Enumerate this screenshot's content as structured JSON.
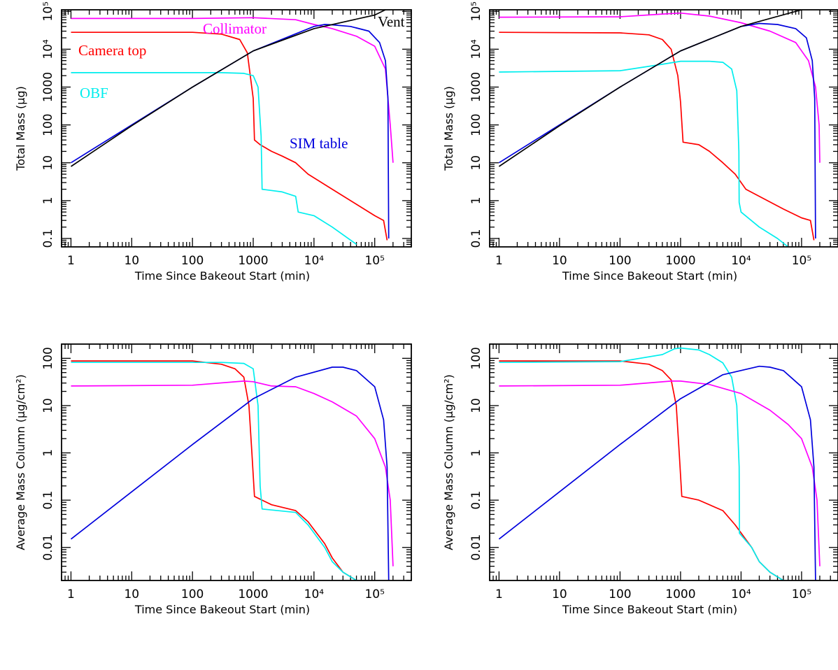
{
  "figure": {
    "colors": {
      "camera_top": "#ff0000",
      "collimator": "#ff00ff",
      "obf": "#00eeee",
      "sim_table": "#0000dd",
      "vent": "#000000"
    }
  },
  "chart_data": [
    {
      "type": "line",
      "xlabel": "Time Since Bakeout Start (min)",
      "ylabel": "Total Mass (μg)",
      "xscale": "log",
      "yscale": "log",
      "xlim": [
        0.7,
        400000
      ],
      "ylim": [
        0.06,
        110000
      ],
      "xtick_labels": [
        "1",
        "10",
        "100",
        "1000",
        "10⁴",
        "10⁵"
      ],
      "ytick_labels": [
        "0.1",
        "1",
        "10",
        "100",
        "1000",
        "10⁴",
        "10⁵"
      ],
      "annotations": [
        {
          "text": "Collimator",
          "series": "collimator"
        },
        {
          "text": "Vent",
          "series": "vent"
        },
        {
          "text": "Camera top",
          "series": "camera_top"
        },
        {
          "text": "OBF",
          "series": "obf"
        },
        {
          "text": "SIM table",
          "series": "sim_table"
        }
      ],
      "series": [
        {
          "key": "camera_top",
          "x": [
            1,
            100,
            300,
            600,
            800,
            1000,
            1050,
            1300,
            2000,
            3000,
            5000,
            8000,
            20000,
            50000,
            100000,
            140000,
            160000
          ],
          "y": [
            28000,
            28000,
            25000,
            18000,
            8000,
            500,
            40,
            30,
            20,
            15,
            10,
            5,
            2,
            0.8,
            0.4,
            0.3,
            0.09
          ]
        },
        {
          "key": "obf",
          "x": [
            1,
            300,
            700,
            1000,
            1200,
            1350,
            1400,
            3000,
            5000,
            5500,
            10000,
            20000,
            50000
          ],
          "y": [
            2400,
            2400,
            2300,
            2000,
            1000,
            50,
            2,
            1.7,
            1.3,
            0.5,
            0.4,
            0.2,
            0.07
          ]
        },
        {
          "key": "collimator",
          "x": [
            1,
            100,
            1000,
            5000,
            10000,
            20000,
            50000,
            100000,
            150000,
            180000,
            200000
          ],
          "y": [
            65000,
            65000,
            68000,
            60000,
            45000,
            35000,
            22000,
            12000,
            3000,
            100,
            10
          ]
        },
        {
          "key": "sim_table",
          "x": [
            1,
            10,
            100,
            1000,
            10000,
            15000,
            20000,
            40000,
            80000,
            120000,
            150000,
            165000,
            170000
          ],
          "y": [
            10,
            100,
            1000,
            9000,
            40000,
            45000,
            44000,
            40000,
            30000,
            15000,
            5000,
            500,
            0.1
          ]
        },
        {
          "key": "vent",
          "x": [
            1,
            10,
            100,
            1000,
            10000,
            100000,
            150000
          ],
          "y": [
            8,
            95,
            1000,
            9000,
            35000,
            80000,
            110000
          ]
        }
      ]
    },
    {
      "type": "line",
      "xlabel": "Time Since Bakeout Start (min)",
      "ylabel": "Total Mass (μg)",
      "xscale": "log",
      "yscale": "log",
      "xlim": [
        0.7,
        400000
      ],
      "ylim": [
        0.06,
        110000
      ],
      "xtick_labels": [
        "1",
        "10",
        "100",
        "1000",
        "10⁴",
        "10⁵"
      ],
      "ytick_labels": [
        "0.1",
        "1",
        "10",
        "100",
        "1000",
        "10⁴",
        "10⁵"
      ],
      "series": [
        {
          "key": "camera_top",
          "x": [
            1,
            100,
            300,
            500,
            700,
            900,
            1000,
            1100,
            2000,
            3000,
            5000,
            8000,
            12000,
            20000,
            50000,
            100000,
            140000,
            160000
          ],
          "y": [
            28000,
            27000,
            24000,
            18000,
            10000,
            2000,
            400,
            35,
            30,
            20,
            10,
            5,
            2,
            1.3,
            0.6,
            0.35,
            0.3,
            0.09
          ]
        },
        {
          "key": "obf",
          "x": [
            1,
            100,
            500,
            1000,
            3000,
            5000,
            7000,
            8500,
            9200,
            9300,
            10000,
            20000,
            40000,
            60000
          ],
          "y": [
            2500,
            2700,
            4000,
            4800,
            4800,
            4500,
            3000,
            800,
            20,
            0.9,
            0.5,
            0.2,
            0.1,
            0.06
          ]
        },
        {
          "key": "collimator",
          "x": [
            1,
            100,
            500,
            1000,
            3000,
            10000,
            30000,
            80000,
            130000,
            170000,
            195000,
            200000
          ],
          "y": [
            70000,
            72000,
            85000,
            90000,
            75000,
            50000,
            30000,
            15000,
            5000,
            1000,
            100,
            10
          ]
        },
        {
          "key": "sim_table",
          "x": [
            1,
            10,
            100,
            1000,
            10000,
            20000,
            40000,
            80000,
            120000,
            150000,
            165000,
            170000
          ],
          "y": [
            10,
            100,
            1000,
            9000,
            40000,
            48000,
            45000,
            35000,
            20000,
            5000,
            500,
            0.1
          ]
        },
        {
          "key": "vent",
          "x": [
            1,
            10,
            100,
            1000,
            10000,
            100000,
            200000
          ],
          "y": [
            8,
            95,
            1000,
            9000,
            40000,
            110000,
            140000
          ]
        }
      ]
    },
    {
      "type": "line",
      "xlabel": "Time Since Bakeout Start (min)",
      "ylabel": "Average Mass Column (μg/cm²)",
      "xscale": "log",
      "yscale": "log",
      "xlim": [
        0.7,
        400000
      ],
      "ylim": [
        0.002,
        200
      ],
      "xtick_labels": [
        "1",
        "10",
        "100",
        "1000",
        "10⁴",
        "10⁵"
      ],
      "ytick_labels": [
        "0.01",
        "0.1",
        "1",
        "10",
        "100"
      ],
      "series": [
        {
          "key": "camera_top",
          "x": [
            1,
            100,
            300,
            500,
            700,
            850,
            950,
            1050,
            2000,
            5000,
            8000,
            15000,
            20000,
            30000,
            50000
          ],
          "y": [
            88,
            88,
            75,
            60,
            40,
            10,
            1,
            0.12,
            0.08,
            0.06,
            0.035,
            0.012,
            0.006,
            0.003,
            0.002
          ]
        },
        {
          "key": "obf",
          "x": [
            1,
            300,
            700,
            1000,
            1200,
            1300,
            1400,
            5000,
            8000,
            15000,
            20000,
            30000,
            50000
          ],
          "y": [
            82,
            82,
            78,
            60,
            10,
            0.2,
            0.065,
            0.055,
            0.03,
            0.01,
            0.005,
            0.003,
            0.002
          ]
        },
        {
          "key": "collimator",
          "x": [
            1,
            100,
            700,
            1000,
            2000,
            5000,
            10000,
            20000,
            50000,
            100000,
            150000,
            180000,
            200000
          ],
          "y": [
            26,
            27,
            33,
            32,
            26,
            25,
            18,
            12,
            6,
            2,
            0.5,
            0.1,
            0.004
          ]
        },
        {
          "key": "sim_table",
          "x": [
            1,
            10,
            100,
            1000,
            5000,
            20000,
            30000,
            50000,
            100000,
            140000,
            160000,
            170000
          ],
          "y": [
            0.015,
            0.15,
            1.5,
            14,
            40,
            65,
            65,
            55,
            25,
            5,
            0.5,
            0.002
          ]
        }
      ]
    },
    {
      "type": "line",
      "xlabel": "Time Since Bakeout Start (min)",
      "ylabel": "Average Mass Column (μg/cm²)",
      "xscale": "log",
      "yscale": "log",
      "xlim": [
        0.7,
        400000
      ],
      "ylim": [
        0.002,
        200
      ],
      "xtick_labels": [
        "1",
        "10",
        "100",
        "1000",
        "10⁴",
        "10⁵"
      ],
      "ytick_labels": [
        "0.01",
        "0.1",
        "1",
        "10",
        "100"
      ],
      "series": [
        {
          "key": "camera_top",
          "x": [
            1,
            100,
            300,
            500,
            700,
            850,
            950,
            1050,
            2000,
            5000,
            8000,
            15000,
            20000,
            30000,
            50000
          ],
          "y": [
            88,
            88,
            75,
            55,
            35,
            10,
            1,
            0.12,
            0.1,
            0.06,
            0.03,
            0.01,
            0.005,
            0.003,
            0.002
          ]
        },
        {
          "key": "obf",
          "x": [
            1,
            100,
            500,
            800,
            1000,
            2000,
            3000,
            5000,
            7000,
            8500,
            9300,
            9400,
            15000,
            20000,
            30000,
            50000
          ],
          "y": [
            82,
            85,
            120,
            160,
            165,
            150,
            120,
            80,
            40,
            10,
            0.5,
            0.02,
            0.01,
            0.005,
            0.003,
            0.002
          ]
        },
        {
          "key": "collimator",
          "x": [
            1,
            100,
            700,
            1000,
            3000,
            10000,
            30000,
            60000,
            100000,
            150000,
            180000,
            200000
          ],
          "y": [
            26,
            27,
            33,
            33,
            28,
            18,
            8,
            4,
            2,
            0.5,
            0.1,
            0.004
          ]
        },
        {
          "key": "sim_table",
          "x": [
            1,
            10,
            100,
            1000,
            5000,
            20000,
            30000,
            50000,
            100000,
            140000,
            160000,
            170000
          ],
          "y": [
            0.015,
            0.15,
            1.5,
            14,
            45,
            68,
            65,
            55,
            25,
            5,
            0.5,
            0.002
          ]
        }
      ]
    }
  ]
}
